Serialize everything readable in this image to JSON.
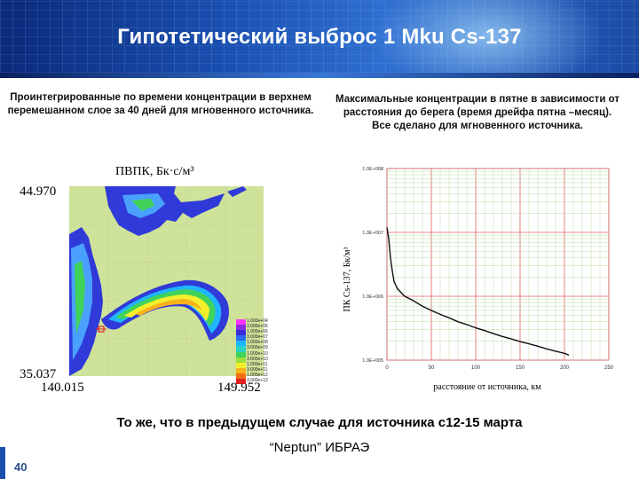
{
  "header": {
    "title": "Гипотетический выброс 1 Mku Cs-137"
  },
  "left_caption": "Проинтегрированные по времени концентрации в верхнем перемешанном слое  за 40 дней для мгновенного источника.",
  "right_caption": "Максимальные концентрации в пятне в зависимости от расстояния до берега (время дрейфа пятна –месяц). Все  сделано для мгновенного источника.",
  "map": {
    "title": "ПВПК, Бк·с/м³",
    "lat_top": "44.970",
    "lat_bottom": "35.037",
    "lon_left": "140.015",
    "lon_right": "149.952",
    "legend": [
      {
        "label": "1.000e+04",
        "color": "#ff33ff"
      },
      {
        "label": "3.000e+05",
        "color": "#8a2be2"
      },
      {
        "label": "1.000e+06",
        "color": "#3a2bd8"
      },
      {
        "label": "3.000e+07",
        "color": "#2c6cf0"
      },
      {
        "label": "1.000e+08",
        "color": "#1fb5ff"
      },
      {
        "label": "3.000e+09",
        "color": "#26d3c0"
      },
      {
        "label": "1.000e+10",
        "color": "#3fd35a"
      },
      {
        "label": "3.000e+10",
        "color": "#9be03a"
      },
      {
        "label": "1.000e+11",
        "color": "#f3ef2a"
      },
      {
        "label": "3.000e+11",
        "color": "#f7b21c"
      },
      {
        "label": "1.000e+12",
        "color": "#f36d17"
      },
      {
        "label": "3.000e+12",
        "color": "#e22020"
      }
    ]
  },
  "chart_data": {
    "type": "line",
    "ylabel": "ПК Cs-137, Бк/м³",
    "xlabel": "расстояние от источника, км",
    "x_ticks": [
      "0",
      "50",
      "100",
      "150",
      "200",
      "250"
    ],
    "y_ticks": [
      "1.0E+008",
      "1.0E+007",
      "1.0E+006",
      "1.0E+005"
    ],
    "xlim": [
      0,
      250
    ],
    "ylim_log10": [
      5,
      8
    ],
    "y_scale": "log",
    "series": [
      {
        "x": [
          0,
          2,
          4,
          6,
          8,
          12,
          20,
          30,
          40,
          50,
          60,
          70,
          80,
          90,
          100,
          110,
          120,
          130,
          140,
          150,
          160,
          170,
          180,
          190,
          200,
          205
        ],
        "y": [
          12000000,
          8000000,
          4000000,
          2500000,
          1700000,
          1300000,
          1000000,
          850000,
          700000,
          600000,
          520000,
          460000,
          400000,
          360000,
          320000,
          290000,
          260000,
          235000,
          215000,
          195000,
          180000,
          165000,
          150000,
          138000,
          128000,
          120000
        ]
      }
    ],
    "grid": true
  },
  "footer": {
    "line1": "То же, что в предыдущем случае для источника с12-15 марта",
    "line2": "“Neptun” ИБРАЭ",
    "slide_number": "40"
  }
}
